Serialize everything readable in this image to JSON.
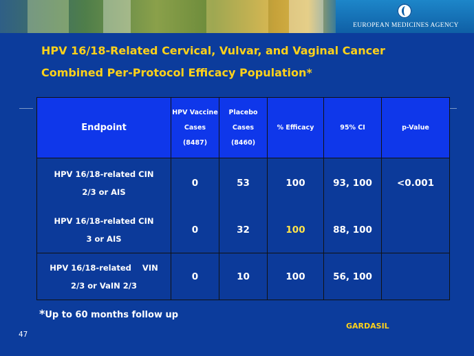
{
  "header": {
    "agency_name": "EUROPEAN MEDICINES AGENCY",
    "logo_icon": "ema-logo-icon"
  },
  "title": {
    "line1": "HPV 16/18-Related Cervical, Vulvar, and Vaginal Cancer",
    "line2": "Combined Per-Protocol Efficacy Population*"
  },
  "colors": {
    "background": "#0c3c9c",
    "header_row": "#0f37ea",
    "title": "#ffd21a",
    "highlight": "#ffe34a"
  },
  "table": {
    "columns": {
      "endpoint": "Endpoint",
      "vaccine": [
        "HPV Vaccine",
        "Cases",
        "(8487)"
      ],
      "placebo": [
        "Placebo",
        "Cases",
        "(8460)"
      ],
      "efficacy": "% Efficacy",
      "ci": "95% CI",
      "pvalue": "p-Value"
    },
    "rows": [
      {
        "endpoint": [
          "HPV 16/18-related  CIN",
          "2/3 or AIS"
        ],
        "vaccine_cases": "0",
        "placebo_cases": "53",
        "efficacy": "100",
        "ci": "93, 100",
        "pvalue": "<0.001"
      },
      {
        "endpoint": [
          "HPV 16/18-related CIN",
          "3 or AIS"
        ],
        "vaccine_cases": "0",
        "placebo_cases": "32",
        "efficacy": "100",
        "ci": "88, 100",
        "pvalue": ""
      },
      {
        "endpoint": [
          "HPV 16/18-related    VIN",
          "2/3 or VaIN 2/3"
        ],
        "vaccine_cases": "0",
        "placebo_cases": "10",
        "efficacy": "100",
        "ci": "56, 100",
        "pvalue": ""
      }
    ]
  },
  "footnote": {
    "star": "*",
    "text": "Up to 60 months follow up"
  },
  "product": "GARDASIL",
  "slide_number": "47"
}
